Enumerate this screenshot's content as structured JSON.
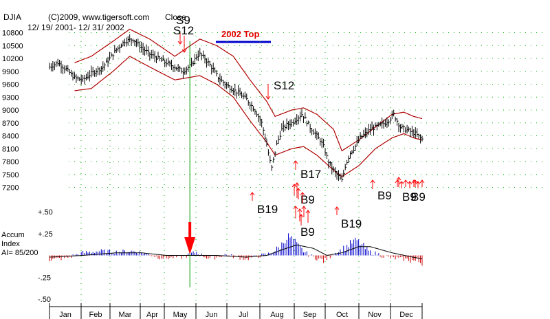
{
  "header": {
    "symbol": "DJIA",
    "copyright": "(C)2009, www.tigersoft.com",
    "mode": "Close",
    "date_range": "12/ 19/ 2001- 12/ 31/ 2002"
  },
  "top_annotation": {
    "text": "2002 Top",
    "color": "#e60000",
    "underline_color": "#0000cc"
  },
  "accum_panel": {
    "title_line1": "Accum",
    "title_line2": "Index",
    "ai_text": "AI= 85/200"
  },
  "colors": {
    "price_bars": "#000000",
    "bands": "#b00000",
    "signal_arrows": "#ff0000",
    "marker_line": "#009900",
    "accum_positive": "#0000cc",
    "accum_negative": "#cc0000",
    "accum_ma": "#000000",
    "grid_dots": "#00aa00"
  },
  "chart_data": [
    {
      "type": "line",
      "title": "DJIA Close with bands",
      "ylim": [
        7000,
        10950
      ],
      "yticks": [
        10800,
        10500,
        10200,
        9900,
        9600,
        9300,
        9000,
        8700,
        8400,
        8100,
        7800,
        7500,
        7200
      ],
      "ytick_labels": [
        "10800",
        "10500",
        "10200",
        "9900",
        "9600",
        "9300",
        "9000",
        "8700",
        "8400",
        "8100",
        "7800",
        "7500",
        "7200"
      ],
      "months": [
        "Jan",
        "Feb",
        "Mar",
        "Apr",
        "May",
        "Jun",
        "Jul",
        "Aug",
        "Sep",
        "Oct",
        "Nov",
        "Dec"
      ],
      "series": [
        {
          "name": "Close",
          "anchors": [
            [
              0,
              10000
            ],
            [
              5,
              10100
            ],
            [
              10,
              9950
            ],
            [
              15,
              9750
            ],
            [
              20,
              9700
            ],
            [
              25,
              9850
            ],
            [
              32,
              10000
            ],
            [
              40,
              10400
            ],
            [
              45,
              10600
            ],
            [
              50,
              10650
            ],
            [
              55,
              10450
            ],
            [
              60,
              10300
            ],
            [
              65,
              10200
            ],
            [
              70,
              10100
            ],
            [
              75,
              10000
            ],
            [
              80,
              9900
            ],
            [
              85,
              10050
            ],
            [
              88,
              10250
            ],
            [
              90,
              10300
            ],
            [
              93,
              10200
            ],
            [
              97,
              10000
            ],
            [
              101,
              9750
            ],
            [
              107,
              9550
            ],
            [
              113,
              9400
            ],
            [
              118,
              9250
            ],
            [
              123,
              9000
            ],
            [
              127,
              8700
            ],
            [
              130,
              8200
            ],
            [
              132,
              7800
            ],
            [
              133,
              7650
            ],
            [
              136,
              8200
            ],
            [
              139,
              8550
            ],
            [
              142,
              8650
            ],
            [
              145,
              8700
            ],
            [
              148,
              8800
            ],
            [
              151,
              8900
            ],
            [
              153,
              8800
            ],
            [
              156,
              8600
            ],
            [
              159,
              8450
            ],
            [
              162,
              8300
            ],
            [
              164,
              8150
            ],
            [
              167,
              7800
            ],
            [
              170,
              7600
            ],
            [
              173,
              7450
            ],
            [
              175,
              7350
            ],
            [
              177,
              7700
            ],
            [
              180,
              8000
            ],
            [
              183,
              8150
            ],
            [
              186,
              8350
            ],
            [
              189,
              8450
            ],
            [
              192,
              8550
            ],
            [
              195,
              8600
            ],
            [
              198,
              8650
            ],
            [
              201,
              8700
            ],
            [
              204,
              8800
            ],
            [
              206,
              8900
            ],
            [
              208,
              8750
            ],
            [
              210,
              8600
            ],
            [
              213,
              8550
            ],
            [
              216,
              8500
            ],
            [
              219,
              8450
            ],
            [
              222,
              8350
            ],
            [
              223,
              8320
            ]
          ]
        },
        {
          "name": "Upper band",
          "anchors": [
            [
              15,
              10100
            ],
            [
              25,
              10250
            ],
            [
              38,
              10600
            ],
            [
              48,
              10880
            ],
            [
              60,
              10650
            ],
            [
              75,
              10250
            ],
            [
              90,
              10650
            ],
            [
              100,
              10500
            ],
            [
              110,
              10250
            ],
            [
              120,
              9700
            ],
            [
              130,
              9200
            ],
            [
              135,
              8850
            ],
            [
              145,
              9000
            ],
            [
              152,
              9050
            ],
            [
              160,
              8900
            ],
            [
              170,
              8550
            ],
            [
              175,
              8050
            ],
            [
              185,
              8300
            ],
            [
              195,
              8600
            ],
            [
              205,
              8900
            ],
            [
              212,
              8950
            ],
            [
              218,
              8850
            ],
            [
              223,
              8800
            ]
          ]
        },
        {
          "name": "Lower band",
          "anchors": [
            [
              15,
              9450
            ],
            [
              25,
              9500
            ],
            [
              38,
              9900
            ],
            [
              48,
              10250
            ],
            [
              60,
              10000
            ],
            [
              75,
              9700
            ],
            [
              90,
              9800
            ],
            [
              100,
              9600
            ],
            [
              110,
              9300
            ],
            [
              120,
              8750
            ],
            [
              130,
              8250
            ],
            [
              135,
              7950
            ],
            [
              145,
              8100
            ],
            [
              152,
              8150
            ],
            [
              160,
              7950
            ],
            [
              170,
              7600
            ],
            [
              175,
              7450
            ],
            [
              185,
              7700
            ],
            [
              195,
              8100
            ],
            [
              205,
              8350
            ],
            [
              212,
              8450
            ],
            [
              218,
              8350
            ],
            [
              223,
              8300
            ]
          ]
        }
      ],
      "x_range": [
        0,
        223
      ],
      "marker_day": 84
    },
    {
      "type": "bar",
      "title": "Accumulation Index",
      "ylim": [
        -0.55,
        0.55
      ],
      "yticks": [
        0.5,
        0.25,
        -0.25,
        -0.5
      ],
      "ytick_labels": [
        "+.50",
        "+.25",
        "-.25",
        "-.50"
      ],
      "anchors": [
        [
          0,
          -0.05
        ],
        [
          10,
          -0.03
        ],
        [
          20,
          0.03
        ],
        [
          30,
          0.05
        ],
        [
          40,
          0.04
        ],
        [
          50,
          0.05
        ],
        [
          55,
          0.03
        ],
        [
          60,
          0.01
        ],
        [
          65,
          -0.02
        ],
        [
          70,
          -0.03
        ],
        [
          75,
          -0.02
        ],
        [
          80,
          -0.02
        ],
        [
          85,
          0.02
        ],
        [
          88,
          0.04
        ],
        [
          90,
          0.01
        ],
        [
          95,
          -0.03
        ],
        [
          100,
          -0.02
        ],
        [
          105,
          0.01
        ],
        [
          110,
          -0.01
        ],
        [
          118,
          -0.04
        ],
        [
          124,
          -0.01
        ],
        [
          130,
          0.01
        ],
        [
          135,
          0.05
        ],
        [
          138,
          0.1
        ],
        [
          141,
          0.18
        ],
        [
          143,
          0.22
        ],
        [
          146,
          0.18
        ],
        [
          148,
          0.12
        ],
        [
          151,
          0.06
        ],
        [
          155,
          0.01
        ],
        [
          158,
          -0.02
        ],
        [
          161,
          -0.04
        ],
        [
          164,
          -0.06
        ],
        [
          166,
          -0.04
        ],
        [
          170,
          0.02
        ],
        [
          175,
          0.06
        ],
        [
          179,
          0.12
        ],
        [
          182,
          0.16
        ],
        [
          184,
          0.17
        ],
        [
          187,
          0.12
        ],
        [
          190,
          0.06
        ],
        [
          193,
          0.03
        ],
        [
          196,
          0.02
        ],
        [
          200,
          -0.01
        ],
        [
          205,
          -0.03
        ],
        [
          210,
          -0.04
        ],
        [
          215,
          -0.05
        ],
        [
          220,
          -0.07
        ],
        [
          223,
          -0.08
        ]
      ],
      "ma_anchors": [
        [
          0,
          -0.02
        ],
        [
          20,
          0.0
        ],
        [
          40,
          0.03
        ],
        [
          55,
          0.03
        ],
        [
          70,
          0.0
        ],
        [
          85,
          0.0
        ],
        [
          100,
          0.0
        ],
        [
          118,
          -0.02
        ],
        [
          130,
          0.0
        ],
        [
          140,
          0.07
        ],
        [
          148,
          0.12
        ],
        [
          158,
          0.08
        ],
        [
          166,
          0.0
        ],
        [
          175,
          0.03
        ],
        [
          185,
          0.1
        ],
        [
          192,
          0.1
        ],
        [
          205,
          0.03
        ],
        [
          215,
          -0.01
        ],
        [
          223,
          -0.04
        ]
      ]
    }
  ],
  "signals": [
    {
      "id": "s9-may",
      "label": "S9",
      "day": 86,
      "label_y": 9999
    },
    {
      "id": "s12-may",
      "label": "S12",
      "day": 86,
      "label_y": 9998
    },
    {
      "id": "s12-aug",
      "label": "S12",
      "day": 152,
      "label_y": 9997
    },
    {
      "id": "b19-jul",
      "label": "B19",
      "day": 132,
      "label_y": 9996
    },
    {
      "id": "b17-aug",
      "label": "B17",
      "day": 158,
      "label_y": 9995
    },
    {
      "id": "b9-sep",
      "label": "B9",
      "day": 159,
      "label_y": 9994
    },
    {
      "id": "b9-sep2",
      "label": "B9",
      "day": 160,
      "label_y": 9993
    },
    {
      "id": "b19-oct",
      "label": "B19",
      "day": 178,
      "label_y": 9992
    },
    {
      "id": "b9-nov",
      "label": "B9",
      "day": 195,
      "label_y": 9991
    },
    {
      "id": "b9-dec",
      "label": "B9",
      "day": 209,
      "label_y": 9990
    },
    {
      "id": "b9-dec2",
      "label": "B9",
      "day": 212,
      "label_y": 9989
    }
  ]
}
